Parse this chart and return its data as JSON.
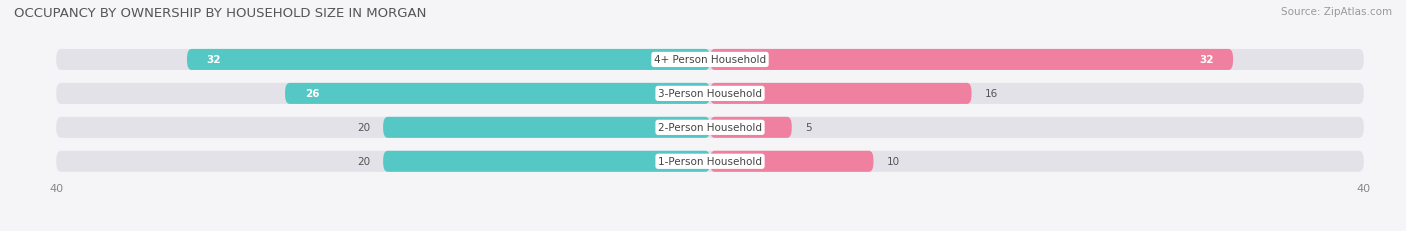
{
  "title": "OCCUPANCY BY OWNERSHIP BY HOUSEHOLD SIZE IN MORGAN",
  "source": "Source: ZipAtlas.com",
  "categories": [
    "1-Person Household",
    "2-Person Household",
    "3-Person Household",
    "4+ Person Household"
  ],
  "owner_values": [
    20,
    20,
    26,
    32
  ],
  "renter_values": [
    10,
    5,
    16,
    32
  ],
  "owner_color": "#55C8C5",
  "renter_color": "#F080A0",
  "bar_bg_color": "#E2E2E8",
  "row_bg_color": "#EEEEF2",
  "background_color": "#F5F5F7",
  "max_val": 40,
  "title_fontsize": 9.5,
  "source_fontsize": 7.5,
  "label_fontsize": 7.5,
  "value_fontsize": 7.5,
  "tick_fontsize": 8,
  "legend_fontsize": 8
}
